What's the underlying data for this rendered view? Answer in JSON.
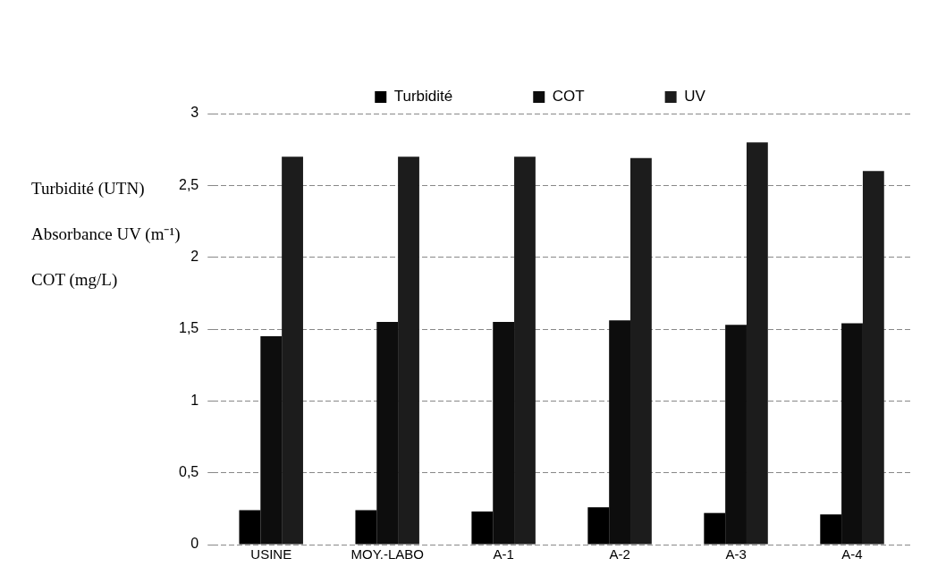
{
  "chart_data": {
    "type": "bar",
    "ylabel": "Turbidité (UTN)\nAbsorbance UV (m⁻¹)\nCOT (mg/L)",
    "categories": [
      "USINE",
      "MOY.-LABO",
      "A-1",
      "A-2",
      "A-3",
      "A-4"
    ],
    "series": [
      {
        "name": "Turbidité",
        "color": "#000000",
        "values": [
          0.24,
          0.24,
          0.23,
          0.26,
          0.22,
          0.21
        ]
      },
      {
        "name": "COT",
        "color": "#0d0d0d",
        "values": [
          1.45,
          1.55,
          1.55,
          1.56,
          1.53,
          1.54
        ]
      },
      {
        "name": "UV",
        "color": "#1c1c1c",
        "values": [
          2.7,
          2.7,
          2.7,
          2.69,
          2.8,
          2.6
        ]
      }
    ],
    "ylim": [
      0,
      3
    ],
    "yticks": [
      0,
      {
        "value": 0.5,
        "label": "0,5"
      },
      1,
      {
        "value": 1.5,
        "label": "1,5"
      },
      2,
      {
        "value": 2.5,
        "label": "2,5"
      },
      3
    ],
    "grid": "y",
    "legend": "top"
  }
}
